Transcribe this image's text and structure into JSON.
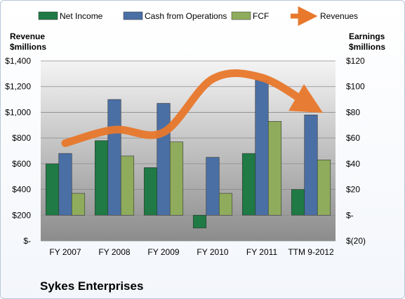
{
  "chart_data": {
    "type": "bar",
    "title": "Sykes Enterprises",
    "categories": [
      "FY 2007",
      "FY 2008",
      "FY 2009",
      "FY 2010",
      "FY 2011",
      "TTM 9-2012"
    ],
    "series": [
      {
        "name": "Net Income",
        "axis": "right",
        "color": "#1f7a45",
        "values": [
          40,
          58,
          37,
          -10,
          48,
          20
        ]
      },
      {
        "name": "Cash from Operations",
        "axis": "right",
        "color": "#4a6fa5",
        "values": [
          48,
          90,
          87,
          45,
          105,
          78
        ]
      },
      {
        "name": "FCF",
        "axis": "right",
        "color": "#8fac5c",
        "values": [
          17,
          46,
          57,
          17,
          73,
          43
        ]
      },
      {
        "name": "Revenues",
        "axis": "left",
        "type": "line",
        "color": "#e8782c",
        "values": [
          760,
          865,
          845,
          1260,
          1270,
          1050
        ]
      }
    ],
    "left_axis": {
      "label": "Revenue\n$millions",
      "ylim": [
        0,
        1400
      ],
      "ticks": [
        0,
        200,
        400,
        600,
        800,
        1000,
        1200,
        1400
      ],
      "tick_labels": [
        "$-",
        "$200",
        "$400",
        "$600",
        "$800",
        "$1,000",
        "$1,200",
        "$1,400"
      ]
    },
    "right_axis": {
      "label": "Earnings\n$millions",
      "ylim": [
        -20,
        120
      ],
      "ticks": [
        -20,
        0,
        20,
        40,
        60,
        80,
        100,
        120
      ],
      "tick_labels": [
        "$(20)",
        "$-",
        "$20",
        "$40",
        "$60",
        "$80",
        "$100",
        "$120"
      ]
    },
    "grid": true,
    "legend": "top"
  }
}
